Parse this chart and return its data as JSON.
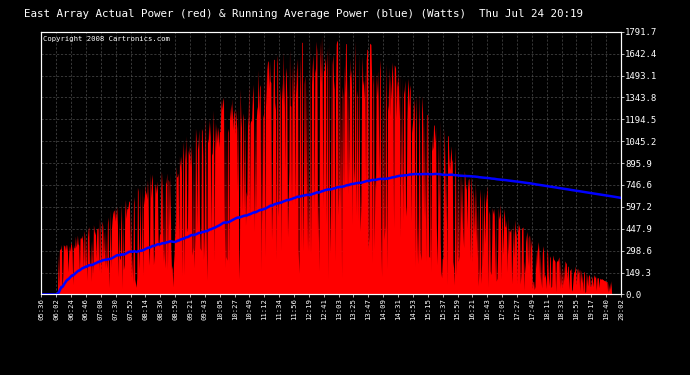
{
  "title": "East Array Actual Power (red) & Running Average Power (blue) (Watts)  Thu Jul 24 20:19",
  "copyright": "Copyright 2008 Cartronics.com",
  "ylabel_right_ticks": [
    0.0,
    149.3,
    298.6,
    447.9,
    597.2,
    746.6,
    895.9,
    1045.2,
    1194.5,
    1343.8,
    1493.1,
    1642.4,
    1791.7
  ],
  "ymax": 1791.7,
  "ymin": 0.0,
  "background_color": "#000000",
  "plot_bg_color": "#000000",
  "title_color": "#ffffff",
  "grid_color": "#777777",
  "actual_color": "#ff0000",
  "avg_color": "#0000ff",
  "x_labels": [
    "05:36",
    "06:02",
    "06:24",
    "06:46",
    "07:08",
    "07:30",
    "07:52",
    "08:14",
    "08:36",
    "08:59",
    "09:21",
    "09:43",
    "10:05",
    "10:27",
    "10:49",
    "11:12",
    "11:34",
    "11:56",
    "12:19",
    "12:41",
    "13:03",
    "13:25",
    "13:47",
    "14:09",
    "14:31",
    "14:53",
    "15:15",
    "15:37",
    "15:59",
    "16:21",
    "16:43",
    "17:05",
    "17:27",
    "17:49",
    "18:11",
    "18:33",
    "18:55",
    "19:17",
    "19:40",
    "20:02"
  ]
}
